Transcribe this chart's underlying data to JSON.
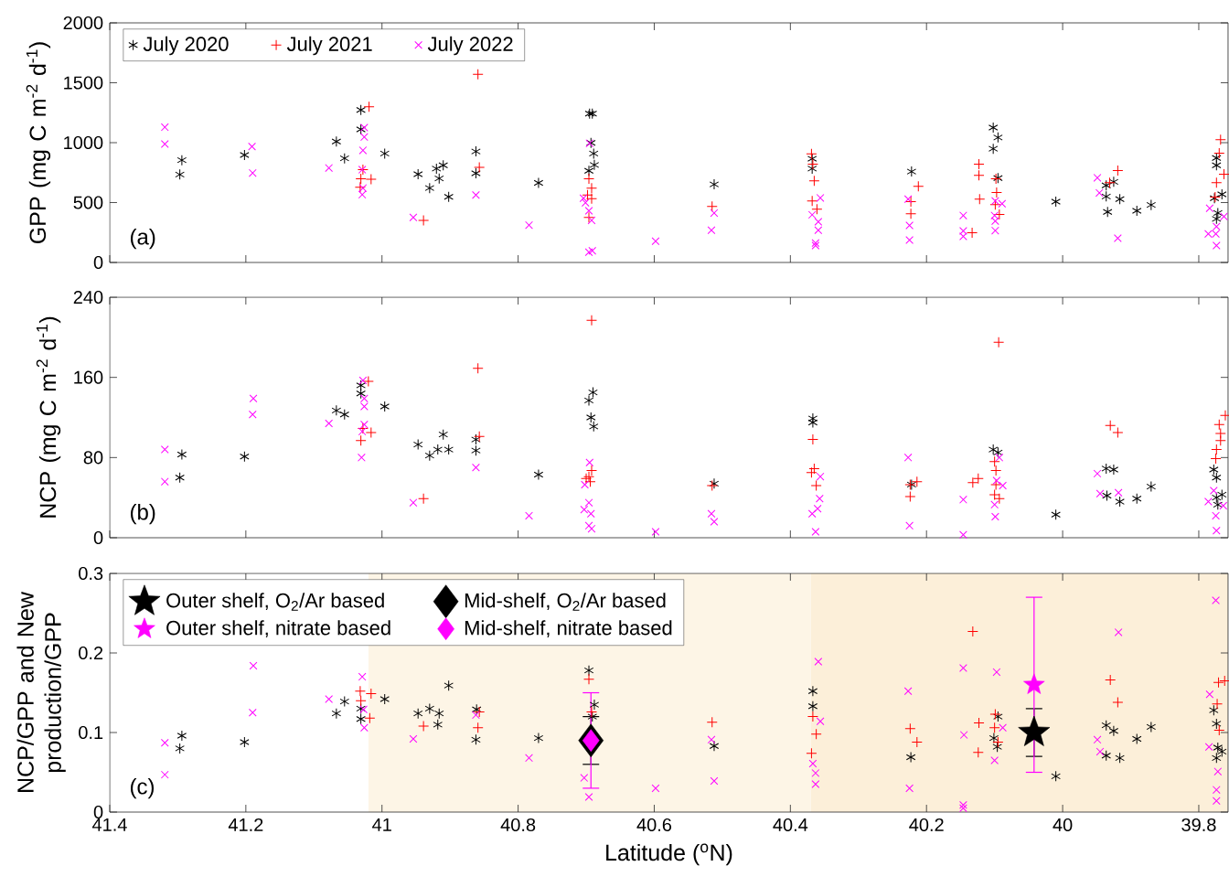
{
  "chart_data": [
    {
      "type": "scatter",
      "ylabel": "GPP (mg C m$^{-2}$ d$^{-1}$)",
      "annotations": [
        "(a)"
      ],
      "xlim": [
        41.4,
        39.757
      ],
      "ylim": [
        0,
        2000
      ],
      "xticks": [
        41.4,
        41.2,
        41,
        40.8,
        40.6,
        40.4,
        40.2,
        40,
        39.8
      ],
      "yticks": [
        0,
        500,
        1000,
        1500,
        2000
      ],
      "tick_labels": "y",
      "legend": "top left",
      "series": [
        {
          "name": "July 2020",
          "color": "#000000",
          "x": [
            41.294,
            41.297,
            41.202,
            41.067,
            41.055,
            41.031,
            41.031,
            40.996,
            40.947,
            40.93,
            40.92,
            40.916,
            40.91,
            40.902,
            40.862,
            40.862,
            40.77,
            40.695,
            40.691,
            40.693,
            40.689,
            40.688,
            40.696,
            40.512,
            40.368,
            40.368,
            40.222,
            40.102,
            40.095,
            40.102,
            40.095,
            40.01,
            39.936,
            39.925,
            39.936,
            39.916,
            39.934,
            39.891,
            39.87,
            39.774,
            39.774,
            39.777,
            39.766,
            39.772,
            39.774
          ],
          "values": [
            854,
            734,
            897,
            1010,
            869,
            1273,
            1111,
            909,
            737,
            621,
            783,
            701,
            811,
            548,
            927,
            744,
            664,
            1242,
            1242,
            998,
            909,
            814,
            765,
            652,
            866,
            783,
            759,
            1126,
            1043,
            949,
            704,
            508,
            643,
            673,
            551,
            529,
            422,
            431,
            480,
            872,
            811,
            536,
            569,
            413,
            364
          ]
        },
        {
          "name": "July 2021",
          "color": "#ff0000",
          "marker": "plus",
          "x": [
            41.019,
            41.028,
            41.031,
            41.016,
            41.032,
            40.939,
            40.859,
            40.857,
            40.696,
            40.692,
            40.698,
            40.692,
            40.696,
            40.515,
            40.369,
            40.367,
            40.365,
            40.368,
            40.361,
            40.223,
            40.212,
            40.223,
            40.123,
            40.123,
            40.122,
            40.133,
            40.098,
            40.097,
            40.099,
            40.093,
            39.919,
            39.931,
            39.768,
            39.77,
            39.774,
            39.763,
            39.776
          ],
          "values": [
            1300,
            774,
            698,
            695,
            627,
            352,
            1570,
            793,
            698,
            621,
            563,
            532,
            376,
            468,
            906,
            820,
            682,
            514,
            444,
            508,
            636,
            407,
            820,
            728,
            529,
            248,
            698,
            584,
            483,
            401,
            768,
            667,
            1025,
            912,
            667,
            737,
            545
          ]
        },
        {
          "name": "July 2022",
          "color": "#ff00ff",
          "marker": "cross",
          "x": [
            41.319,
            41.319,
            41.191,
            41.19,
            41.078,
            41.026,
            41.026,
            41.028,
            41.029,
            41.028,
            41.029,
            40.954,
            40.862,
            40.784,
            40.695,
            40.704,
            40.701,
            40.696,
            40.692,
            40.696,
            40.691,
            40.598,
            40.512,
            40.516,
            40.368,
            40.356,
            40.359,
            40.359,
            40.363,
            40.363,
            40.227,
            40.225,
            40.225,
            40.146,
            40.146,
            40.146,
            40.099,
            40.089,
            40.1,
            40.099,
            40.099,
            39.949,
            39.946,
            39.919,
            39.784,
            39.786,
            39.774,
            39.775,
            39.774,
            39.763
          ],
          "values": [
            1129,
            988,
            967,
            747,
            789,
            1126,
            1047,
            936,
            774,
            621,
            566,
            376,
            563,
            312,
            995,
            536,
            499,
            431,
            352,
            86,
            98,
            177,
            413,
            269,
            398,
            539,
            340,
            269,
            162,
            141,
            529,
            309,
            187,
            392,
            263,
            217,
            514,
            490,
            392,
            346,
            266,
            707,
            581,
            202,
            453,
            239,
            300,
            239,
            141,
            383
          ]
        }
      ]
    },
    {
      "type": "scatter",
      "ylabel": "NCP (mg C m$^{-2}$ d$^{-1}$)",
      "annotations": [
        "(b)"
      ],
      "xlim": [
        41.4,
        39.757
      ],
      "ylim": [
        0,
        240
      ],
      "xticks": [
        41.4,
        41.2,
        41,
        40.8,
        40.6,
        40.4,
        40.2,
        40,
        39.8
      ],
      "yticks": [
        0,
        80,
        160,
        240
      ],
      "tick_labels": "y",
      "series": [
        {
          "color": "#000000",
          "x": [
            41.294,
            41.297,
            41.202,
            41.067,
            41.055,
            41.031,
            41.031,
            40.996,
            40.947,
            40.93,
            40.918,
            40.91,
            40.902,
            40.862,
            40.862,
            40.77,
            40.696,
            40.69,
            40.693,
            40.689,
            40.512,
            40.367,
            40.367,
            40.222,
            40.102,
            40.095,
            40.01,
            39.936,
            39.925,
            39.935,
            39.916,
            39.891,
            39.87,
            39.778,
            39.774,
            39.774,
            39.766,
            39.772
          ],
          "values": [
            83,
            60,
            81,
            127,
            123,
            152,
            144,
            131,
            93,
            82,
            88,
            103,
            88,
            98,
            87,
            63,
            137,
            145,
            120,
            111,
            54,
            119,
            115,
            53,
            88,
            85,
            23,
            69,
            68,
            42,
            36,
            39,
            51,
            68,
            60,
            40,
            43,
            33
          ]
        },
        {
          "color": "#ff0000",
          "marker": "plus",
          "x": [
            41.02,
            41.028,
            41.031,
            41.016,
            40.939,
            40.859,
            40.857,
            40.692,
            40.692,
            40.696,
            40.7,
            40.694,
            40.515,
            40.367,
            40.365,
            40.369,
            40.362,
            40.224,
            40.214,
            40.224,
            40.094,
            40.1,
            40.098,
            40.124,
            40.132,
            40.098,
            40.1,
            40.093,
            39.93,
            39.919,
            39.761,
            39.77,
            39.768,
            39.768,
            39.774,
            39.775
          ],
          "values": [
            156,
            109,
            97,
            105,
            39,
            169,
            101,
            217,
            67,
            61,
            59,
            56,
            52,
            98,
            69,
            65,
            52,
            53,
            56,
            41,
            195,
            76,
            67,
            59,
            55,
            53,
            43,
            39,
            112,
            105,
            122,
            113,
            104,
            97,
            88,
            79
          ]
        },
        {
          "color": "#ff00ff",
          "marker": "cross",
          "x": [
            41.319,
            41.319,
            41.189,
            41.19,
            41.078,
            41.028,
            41.026,
            41.026,
            41.026,
            41.029,
            41.03,
            40.862,
            40.954,
            40.784,
            40.695,
            40.702,
            40.696,
            40.703,
            40.693,
            40.696,
            40.692,
            40.598,
            40.516,
            40.512,
            40.356,
            40.368,
            40.357,
            40.36,
            40.363,
            40.227,
            40.225,
            40.146,
            40.146,
            40.093,
            40.097,
            40.088,
            40.1,
            40.099,
            39.949,
            39.945,
            39.918,
            39.778,
            39.786,
            39.775,
            39.764,
            39.774
          ],
          "values": [
            88,
            56,
            139,
            123,
            114,
            157,
            139,
            131,
            113,
            106,
            80,
            70,
            35,
            22,
            75,
            53,
            35,
            28,
            24,
            12,
            9,
            6,
            24,
            16,
            61,
            24,
            39,
            29,
            6,
            80,
            12,
            38,
            3,
            80,
            57,
            52,
            33,
            21,
            64,
            44,
            45,
            47,
            36,
            22,
            32,
            7
          ]
        }
      ]
    },
    {
      "type": "scatter",
      "xlabel": "Latitude ($^{o}$N)",
      "ylabel": "NCP/GPP and New production/GPP",
      "annotations": [
        "(c)"
      ],
      "xlim": [
        41.4,
        39.757
      ],
      "ylim": [
        0,
        0.3
      ],
      "xticks": [
        41.4,
        41.2,
        41,
        40.8,
        40.6,
        40.4,
        40.2,
        40,
        39.8
      ],
      "yticks": [
        0,
        0.1,
        0.2,
        0.3
      ],
      "legend": "top left",
      "bands": [
        {
          "axis": "x",
          "from": 41.02,
          "to": 40.37,
          "color": "#fdf5e6"
        },
        {
          "axis": "x",
          "from": 40.37,
          "to": 39.757,
          "color": "#fcefd9"
        }
      ],
      "series": [
        {
          "color": "#000000",
          "x": [
            41.294,
            41.297,
            41.202,
            41.067,
            41.055,
            41.031,
            41.031,
            40.996,
            40.947,
            40.93,
            40.918,
            40.916,
            40.902,
            40.861,
            40.862,
            40.77,
            40.696,
            40.688,
            40.691,
            40.512,
            40.367,
            40.367,
            40.223,
            40.095,
            40.101,
            40.096,
            40.01,
            39.936,
            39.925,
            39.936,
            39.916,
            39.891,
            39.87,
            39.778,
            39.774,
            39.772,
            39.766,
            39.774
          ],
          "values": [
            0.096,
            0.08,
            0.088,
            0.124,
            0.139,
            0.13,
            0.117,
            0.142,
            0.124,
            0.13,
            0.11,
            0.124,
            0.159,
            0.129,
            0.091,
            0.093,
            0.178,
            0.135,
            0.12,
            0.083,
            0.152,
            0.133,
            0.069,
            0.12,
            0.093,
            0.082,
            0.045,
            0.109,
            0.102,
            0.071,
            0.068,
            0.092,
            0.107,
            0.128,
            0.111,
            0.081,
            0.076,
            0.068
          ]
        },
        {
          "color": "#ff0000",
          "marker": "plus",
          "x": [
            41.032,
            41.016,
            41.031,
            41.018,
            40.939,
            40.859,
            40.857,
            40.696,
            40.692,
            40.515,
            40.132,
            40.367,
            40.362,
            40.369,
            40.224,
            40.214,
            40.123,
            40.124,
            40.099,
            40.1,
            40.095,
            39.93,
            39.919,
            39.771,
            39.762,
            39.773,
            39.77
          ],
          "values": [
            0.152,
            0.149,
            0.14,
            0.118,
            0.108,
            0.106,
            0.126,
            0.167,
            0.126,
            0.113,
            0.227,
            0.12,
            0.098,
            0.074,
            0.105,
            0.088,
            0.112,
            0.075,
            0.123,
            0.106,
            0.088,
            0.166,
            0.138,
            0.163,
            0.165,
            0.136,
            0.103
          ]
        },
        {
          "color": "#ff00ff",
          "marker": "cross",
          "x": [
            41.319,
            41.319,
            41.189,
            41.19,
            41.078,
            41.029,
            41.027,
            41.026,
            40.954,
            40.862,
            40.784,
            40.696,
            40.703,
            40.598,
            40.516,
            40.512,
            40.359,
            40.356,
            40.367,
            40.363,
            40.363,
            40.227,
            40.225,
            40.146,
            40.145,
            40.146,
            40.146,
            40.097,
            40.088,
            40.1,
            39.918,
            39.949,
            39.945,
            39.784,
            39.785,
            39.775,
            39.772,
            39.774,
            39.774
          ],
          "values": [
            0.087,
            0.047,
            0.184,
            0.125,
            0.142,
            0.17,
            0.129,
            0.106,
            0.092,
            0.122,
            0.068,
            0.019,
            0.043,
            0.03,
            0.091,
            0.039,
            0.189,
            0.114,
            0.061,
            0.049,
            0.035,
            0.152,
            0.03,
            0.181,
            0.097,
            0.009,
            0.005,
            0.176,
            0.106,
            0.065,
            0.226,
            0.091,
            0.076,
            0.148,
            0.082,
            0.266,
            0.051,
            0.028,
            0.014
          ]
        },
        {
          "name": "Outer shelf, O$_{2}$/Ar based",
          "color": "#000000",
          "marker": "star",
          "x": [
            40.042
          ],
          "values": [
            0.1
          ],
          "errors": [
            0.03
          ]
        },
        {
          "name": "Mid-shelf, O$_{2}$/Ar based",
          "color": "#000000",
          "marker": "diamond",
          "x": [
            40.693
          ],
          "values": [
            0.09
          ],
          "errors": [
            0.03
          ]
        },
        {
          "name": "Outer shelf, nitrate based",
          "color": "#ff00ff",
          "marker": "star",
          "x": [
            40.042
          ],
          "values": [
            0.16
          ],
          "errors": [
            0.11
          ]
        },
        {
          "name": "Mid-shelf, nitrate based",
          "color": "#ff00ff",
          "marker": "diamond",
          "x": [
            40.693
          ],
          "values": [
            0.09
          ],
          "errors": [
            0.06
          ]
        }
      ]
    }
  ]
}
